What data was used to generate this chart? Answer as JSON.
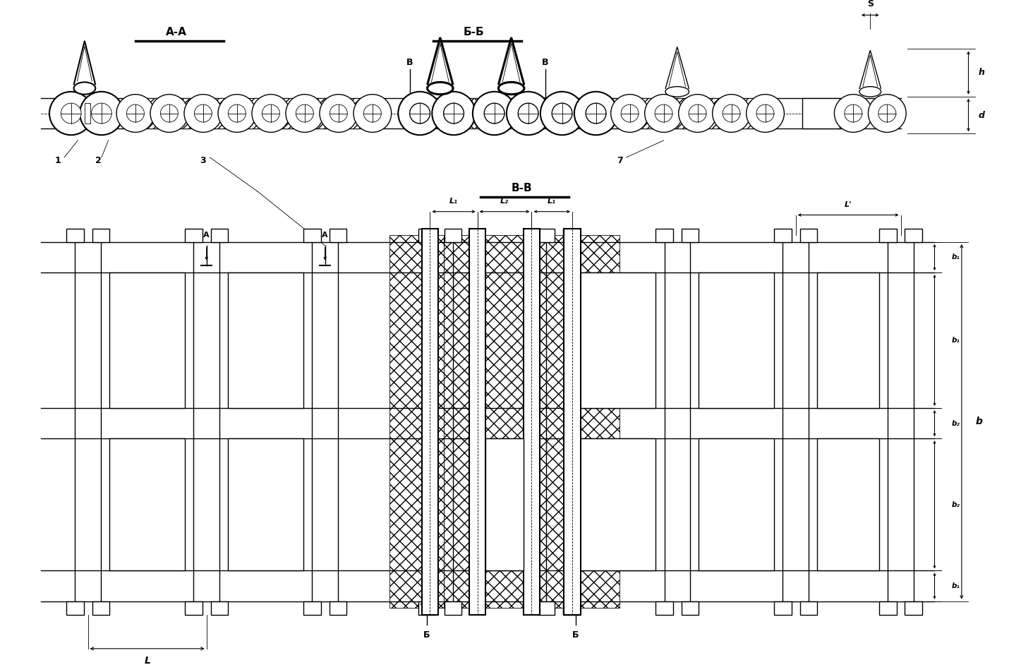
{
  "bg_color": "#ffffff",
  "line_color": "#000000",
  "fig_width": 14.3,
  "fig_height": 9.42,
  "dpi": 100,
  "labels": {
    "AA": "А-А",
    "BB": "Б-Б",
    "VV": "В-В",
    "n1": "1",
    "n2": "2",
    "n3": "3",
    "n7": "7",
    "L": "L",
    "L1": "L₁",
    "L2": "L₂",
    "Lp": "L'",
    "b": "b",
    "b1": "b₁",
    "b2": "b₂",
    "s": "S",
    "h": "h",
    "d": "d",
    "A": "A",
    "B": "B",
    "Б": "Б"
  }
}
